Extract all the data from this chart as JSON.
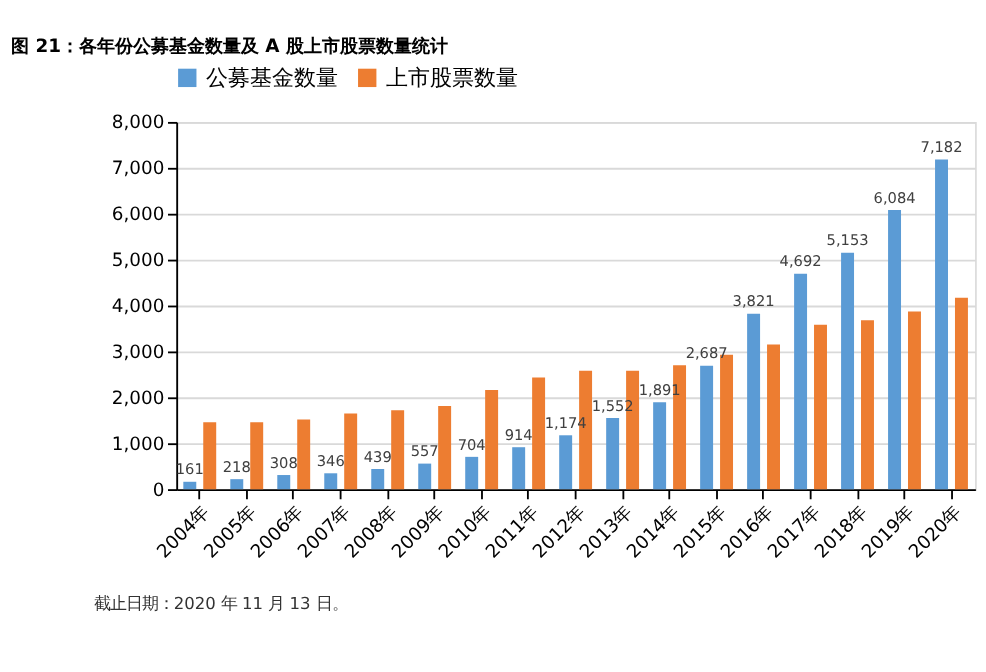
{
  "chart_data": {
    "type": "bar",
    "title": "图 21：各年份公募基金数量及 A 股上市股票数量统计",
    "categories": [
      "2004年",
      "2005年",
      "2006年",
      "2007年",
      "2008年",
      "2009年",
      "2010年",
      "2011年",
      "2012年",
      "2013年",
      "2014年",
      "2015年",
      "2016年",
      "2017年",
      "2018年",
      "2019年",
      "2020年"
    ],
    "series": [
      {
        "name": "公募基金数量",
        "color": "#5b9bd5",
        "values": [
          161,
          218,
          308,
          346,
          439,
          557,
          704,
          914,
          1174,
          1552,
          1891,
          2687,
          3821,
          4692,
          5153,
          6084,
          7182
        ],
        "value_labels": [
          "161",
          "218",
          "308",
          "346",
          "439",
          "557",
          "704",
          "914",
          "1,174",
          "1,552",
          "1,891",
          "2,687",
          "3,821",
          "4,692",
          "5,153",
          "6,084",
          "7,182"
        ]
      },
      {
        "name": "上市股票数量",
        "color": "#ed7d31",
        "values": [
          1460,
          1460,
          1520,
          1650,
          1720,
          1810,
          2160,
          2430,
          2580,
          2580,
          2700,
          2930,
          3150,
          3580,
          3680,
          3870,
          4170
        ]
      }
    ],
    "ylim": [
      0,
      8000
    ],
    "yticks": [
      {
        "value": 0,
        "label": "0"
      },
      {
        "value": 1000,
        "label": "1,000"
      },
      {
        "value": 2000,
        "label": "2,000"
      },
      {
        "value": 3000,
        "label": "3,000"
      },
      {
        "value": 4000,
        "label": "4,000"
      },
      {
        "value": 5000,
        "label": "5,000"
      },
      {
        "value": 6000,
        "label": "6,000"
      },
      {
        "value": 7000,
        "label": "7,000"
      },
      {
        "value": 8000,
        "label": "8,000"
      }
    ],
    "grid": "y",
    "legend": "top",
    "annotations": [
      "截止日期：2020 年 11 月 13 日。"
    ]
  }
}
